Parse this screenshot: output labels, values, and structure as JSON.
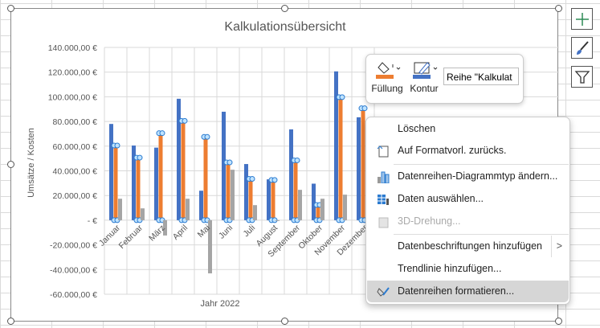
{
  "chart_data": {
    "type": "bar",
    "title": "Kalkulationsübersicht",
    "xlabel": "Jahr 2022",
    "ylabel": "Umsätze / Kosten",
    "ylim": [
      -60000,
      140000
    ],
    "yticks": [
      "140.000,00 €",
      "120.000,00 €",
      "100.000,00 €",
      "80.000,00 €",
      "60.000,00 €",
      "40.000,00 €",
      "20.000,00 €",
      "-  €",
      "-20.000,00 €",
      "-40.000,00 €",
      "-60.000,00 €"
    ],
    "categories": [
      "Januar",
      "Februar",
      "März",
      "April",
      "Mai",
      "Juni",
      "Juli",
      "August",
      "September",
      "Oktober",
      "November",
      "Dezember"
    ],
    "grid": true,
    "series": [
      {
        "color": "#4472c4",
        "values": [
          78000,
          60500,
          58800,
          98400,
          23900,
          87900,
          45500,
          33100,
          73600,
          29600,
          120600,
          83400
        ]
      },
      {
        "color": "#ed7d31",
        "selected": true,
        "values": [
          60500,
          50700,
          70500,
          80500,
          67500,
          46800,
          33500,
          32600,
          48500,
          12400,
          99700,
          90700
        ]
      },
      {
        "color": "#a5a5a5",
        "values": [
          17400,
          9600,
          -12400,
          17400,
          -43100,
          40900,
          12200,
          -500,
          24600,
          17400,
          20700,
          -7300
        ]
      }
    ]
  },
  "mini_toolbar": {
    "fill_label": "Füllung",
    "outline_label": "Kontur",
    "series_select": "Reihe \"Kalkulat",
    "fill_color": "#ed7d31",
    "outline_color": "#4472c4"
  },
  "side_buttons": [
    "plus-icon",
    "brush-icon",
    "filter-icon"
  ],
  "context_menu": [
    {
      "label": "Löschen",
      "icon": ""
    },
    {
      "label": "Auf Formatvorl. zurücks.",
      "icon": "reset-style-icon"
    },
    {
      "label": "Datenreihen-Diagrammtyp ändern...",
      "icon": "chart-type-icon"
    },
    {
      "label": "Daten auswählen...",
      "icon": "select-data-icon"
    },
    {
      "label": "3D-Drehung...",
      "icon": "3d-rotation-icon",
      "disabled": true
    },
    {
      "label": "Datenbeschriftungen hinzufügen",
      "icon": "",
      "submenu": true
    },
    {
      "label": "Trendlinie hinzufügen...",
      "icon": ""
    },
    {
      "label": "Datenreihen formatieren...",
      "icon": "format-series-icon",
      "highlighted": true
    }
  ]
}
